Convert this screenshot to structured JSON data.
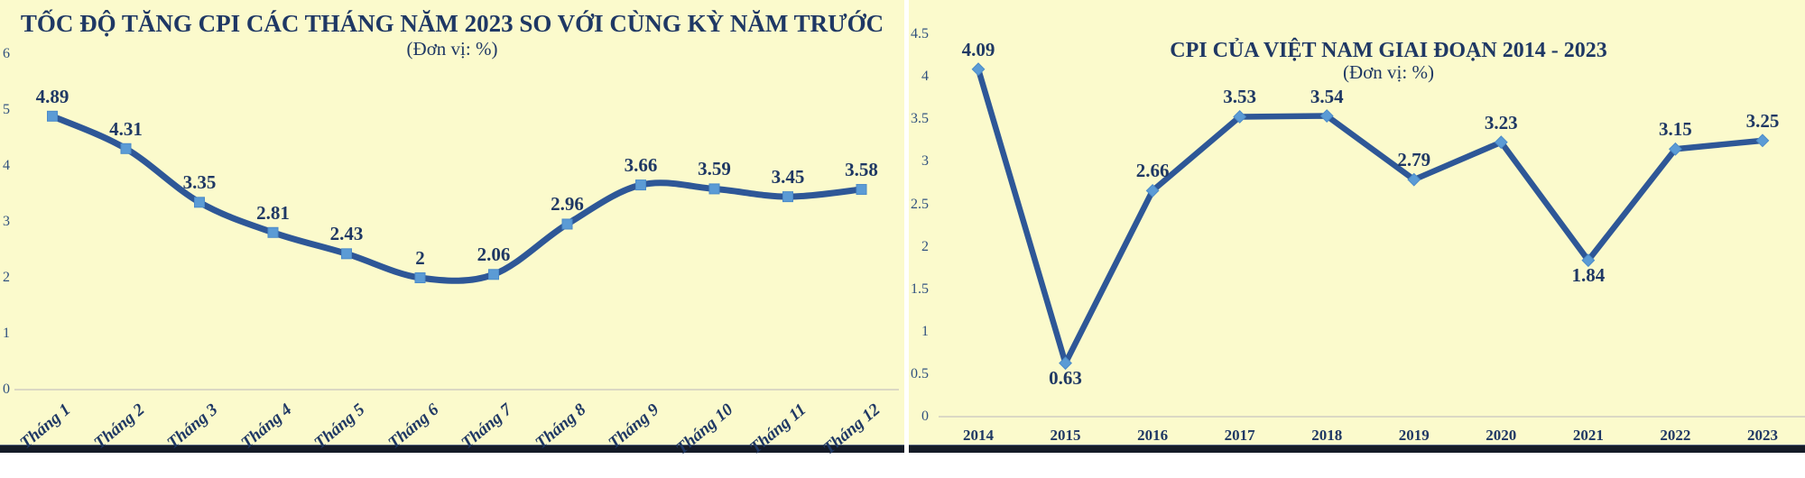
{
  "page": {
    "background_color": "#FBFACC",
    "divider_color": "#FFFFFF",
    "bottom_bar_color": "#151B27",
    "text_color": "#1F3864",
    "tick_color": "#30517F",
    "line_color": "#2E5797",
    "marker_fill": "#5B9BD5",
    "marker_edge": "#4C8BC9",
    "baseline_color": "#DBD8C4"
  },
  "chart_data": [
    {
      "type": "line",
      "title": "TỐC ĐỘ TĂNG CPI CÁC THÁNG NĂM 2023 SO VỚI CÙNG KỲ NĂM TRƯỚC",
      "subtitle": "(Đơn vị: %)",
      "smooth": true,
      "marker": "square",
      "legend": "none",
      "grid": "zero-baseline-only",
      "categories": [
        "Tháng 1",
        "Tháng 2",
        "Tháng 3",
        "Tháng 4",
        "Tháng 5",
        "Tháng 6",
        "Tháng 7",
        "Tháng 8",
        "Tháng 9",
        "Tháng 10",
        "Tháng 11",
        "Tháng 12"
      ],
      "values": [
        4.89,
        4.31,
        3.35,
        2.81,
        2.43,
        2,
        2.06,
        2.96,
        3.66,
        3.59,
        3.45,
        3.58
      ],
      "point_labels": [
        "4.89",
        "4.31",
        "3.35",
        "2.81",
        "2.43",
        "2",
        "2.06",
        "2.96",
        "3.66",
        "3.59",
        "3.45",
        "3.58"
      ],
      "labels_below_points": [],
      "xlabel": "",
      "ylabel": "",
      "ylim": [
        0,
        6
      ],
      "y_tick_values": [
        0,
        1,
        2,
        3,
        4,
        5,
        6
      ],
      "y_tick_labels": [
        "0",
        "1",
        "2",
        "3",
        "4",
        "5",
        "6"
      ]
    },
    {
      "type": "line",
      "title": "CPI CỦA VIỆT NAM GIAI ĐOẠN 2014 - 2023",
      "subtitle": "(Đơn vị: %)",
      "smooth": false,
      "marker": "diamond",
      "legend": "none",
      "grid": "zero-baseline-only",
      "categories": [
        "2014",
        "2015",
        "2016",
        "2017",
        "2018",
        "2019",
        "2020",
        "2021",
        "2022",
        "2023"
      ],
      "values": [
        4.09,
        0.63,
        2.66,
        3.53,
        3.54,
        2.79,
        3.23,
        1.84,
        3.15,
        3.25
      ],
      "point_labels": [
        "4.09",
        "0.63",
        "2.66",
        "3.53",
        "3.54",
        "2.79",
        "3.23",
        "1.84",
        "3.15",
        "3.25"
      ],
      "labels_below_points": [
        1,
        7
      ],
      "xlabel": "",
      "ylabel": "",
      "ylim": [
        0,
        4.5
      ],
      "y_tick_values": [
        0,
        0.5,
        1,
        1.5,
        2,
        2.5,
        3,
        3.5,
        4,
        4.5
      ],
      "y_tick_labels": [
        "0",
        "0.5",
        "1",
        "1.5",
        "2",
        "2.5",
        "3",
        "3.5",
        "4",
        "4.5"
      ]
    }
  ]
}
